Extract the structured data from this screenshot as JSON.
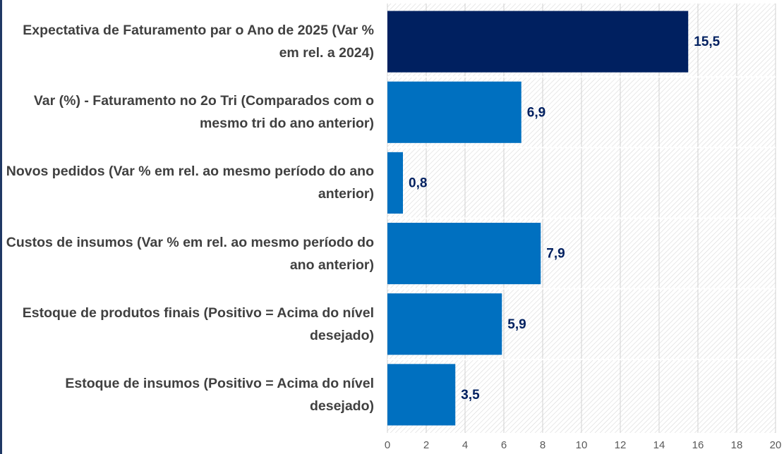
{
  "chart_data": {
    "type": "bar",
    "orientation": "horizontal",
    "categories": [
      "Expectativa de Faturamento par o Ano de 2025 (Var % em rel. a 2024)",
      "Var (%)  - Faturamento  no 2o Tri (Comparados com o mesmo tri do ano anterior)",
      "Novos pedidos (Var % em rel. ao mesmo período do ano anterior)",
      "Custos de insumos (Var % em rel. ao mesmo período do ano anterior)",
      "Estoque de produtos finais (Positivo = Acima do nível desejado)",
      "Estoque de insumos (Positivo = Acima do nível desejado)"
    ],
    "values": [
      15.5,
      6.9,
      0.8,
      7.9,
      5.9,
      3.5
    ],
    "value_labels": [
      "15,5",
      "6,9",
      "0,8",
      "7,9",
      "5,9",
      "3,5"
    ],
    "colors": [
      "#002060",
      "#0070c0",
      "#0070c0",
      "#0070c0",
      "#0070c0",
      "#0070c0"
    ],
    "xlim": [
      0,
      20
    ],
    "xticks": [
      0,
      2,
      4,
      6,
      8,
      10,
      12,
      14,
      16,
      18,
      20
    ],
    "grid": true
  }
}
